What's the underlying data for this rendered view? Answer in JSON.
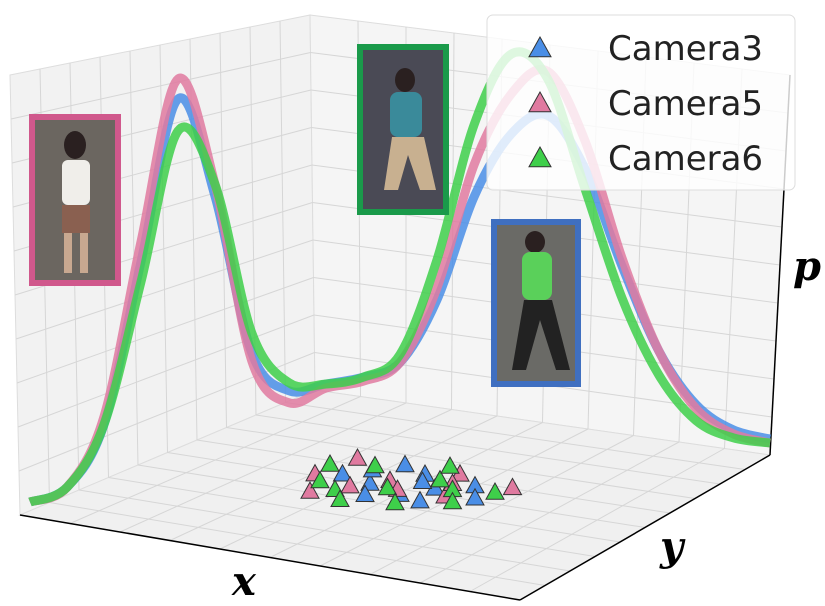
{
  "chart_data": {
    "type": "density3d",
    "x_label": "x",
    "y_label": "y",
    "z_label": "p",
    "x": [
      0,
      0.5,
      1,
      1.5,
      2,
      2.5,
      3,
      3.5,
      4,
      4.5,
      5,
      5.5,
      6,
      6.5,
      7,
      7.5,
      8,
      8.5,
      9,
      9.5,
      10
    ],
    "series": [
      {
        "name": "Camera3",
        "color": "#4a8ee6",
        "values": [
          0.02,
          0.05,
          0.2,
          0.6,
          1.0,
          0.75,
          0.35,
          0.25,
          0.26,
          0.27,
          0.3,
          0.45,
          0.7,
          0.85,
          0.89,
          0.75,
          0.5,
          0.28,
          0.14,
          0.07,
          0.04
        ],
        "points": {
          "x": [
            4.0,
            4.5,
            5.1,
            3.6,
            4.8,
            5.6,
            3.9,
            4.3,
            6.0,
            5.3,
            3.3,
            4.7
          ],
          "y": [
            6.0,
            7.2,
            6.4,
            6.9,
            5.6,
            7.0,
            7.6,
            5.2,
            6.2,
            5.4,
            6.3,
            6.7
          ]
        }
      },
      {
        "name": "Camera5",
        "color": "#e07aa0",
        "values": [
          0.02,
          0.05,
          0.22,
          0.65,
          1.05,
          0.78,
          0.33,
          0.22,
          0.25,
          0.26,
          0.3,
          0.48,
          0.78,
          0.95,
          1.0,
          0.82,
          0.52,
          0.28,
          0.13,
          0.06,
          0.03
        ],
        "points": {
          "x": [
            3.0,
            4.2,
            5.0,
            3.8,
            5.5,
            2.9,
            4.6,
            6.2,
            3.4,
            5.2
          ],
          "y": [
            7.5,
            6.4,
            7.6,
            5.6,
            6.0,
            6.0,
            5.9,
            7.3,
            4.8,
            6.9
          ]
        }
      },
      {
        "name": "Camera6",
        "color": "#3ecf4a",
        "values": [
          0.02,
          0.05,
          0.2,
          0.55,
          0.92,
          0.78,
          0.4,
          0.27,
          0.26,
          0.27,
          0.32,
          0.55,
          0.88,
          1.05,
          0.98,
          0.7,
          0.42,
          0.22,
          0.1,
          0.05,
          0.03
        ],
        "points": {
          "x": [
            3.5,
            4.4,
            5.4,
            3.7,
            4.9,
            6.1,
            2.8,
            4.1,
            5.8,
            4.6,
            3.2,
            5.0
          ],
          "y": [
            7.2,
            5.9,
            6.5,
            5.2,
            7.0,
            6.8,
            6.8,
            4.6,
            5.7,
            8.0,
            5.6,
            5.0
          ]
        }
      }
    ]
  }
}
